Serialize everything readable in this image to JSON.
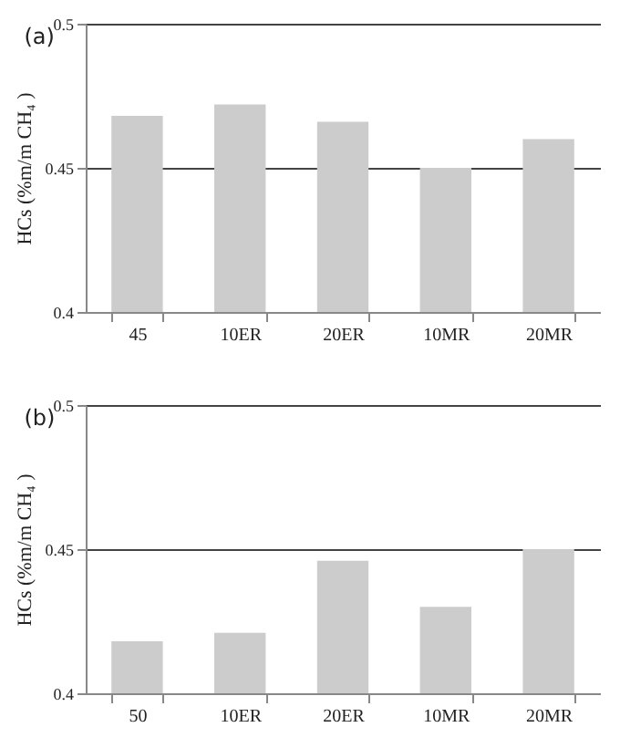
{
  "chart_data": [
    {
      "type": "bar",
      "title": "(a)",
      "ylabel": "HCs (%m/m CH₄ )",
      "categories": [
        "45",
        "10ER",
        "20ER",
        "10MR",
        "20MR"
      ],
      "values": [
        0.468,
        0.472,
        0.466,
        0.45,
        0.46
      ],
      "color": "#cccccc",
      "ylim": [
        0.4,
        0.5
      ],
      "yticks": [
        0.4,
        0.45,
        0.5
      ],
      "grid": "y"
    },
    {
      "type": "bar",
      "title": "(b)",
      "ylabel": "HCs (%m/m CH₄ )",
      "categories": [
        "50",
        "10ER",
        "20ER",
        "10MR",
        "20MR"
      ],
      "values": [
        0.418,
        0.421,
        0.446,
        0.43,
        0.45
      ],
      "color": "#cccccc",
      "ylim": [
        0.4,
        0.5
      ],
      "yticks": [
        0.4,
        0.45,
        0.5
      ],
      "grid": "y"
    }
  ]
}
